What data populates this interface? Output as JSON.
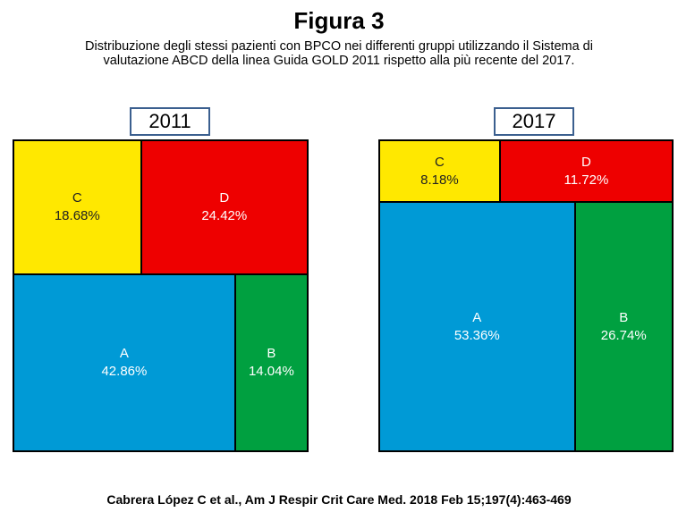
{
  "header": {
    "title": "Figura 3",
    "subtitle_line1": "Distribuzione degli stessi pazienti con BPCO nei differenti gruppi utilizzando il Sistema di",
    "subtitle_line2": "valutazione ABCD della linea Guida GOLD 2011 rispetto alla più recente del 2017."
  },
  "chart_data": [
    {
      "type": "treemap",
      "title": "2011",
      "cells": [
        {
          "group": "C",
          "value": 18.68,
          "label": "18.68%",
          "color": "#ffe800",
          "text_color": "#222222"
        },
        {
          "group": "D",
          "value": 24.42,
          "label": "24.42%",
          "color": "#ee0000",
          "text_color": "#ffffff"
        },
        {
          "group": "A",
          "value": 42.86,
          "label": "42.86%",
          "color": "#009ad6",
          "text_color": "#ffffff"
        },
        {
          "group": "B",
          "value": 14.04,
          "label": "14.04%",
          "color": "#00a040",
          "text_color": "#ffffff"
        }
      ]
    },
    {
      "type": "treemap",
      "title": "2017",
      "cells": [
        {
          "group": "C",
          "value": 8.18,
          "label": "8.18%",
          "color": "#ffe800",
          "text_color": "#222222"
        },
        {
          "group": "D",
          "value": 11.72,
          "label": "11.72%",
          "color": "#ee0000",
          "text_color": "#ffffff"
        },
        {
          "group": "A",
          "value": 53.36,
          "label": "53.36%",
          "color": "#009ad6",
          "text_color": "#ffffff"
        },
        {
          "group": "B",
          "value": 26.74,
          "label": "26.74%",
          "color": "#00a040",
          "text_color": "#ffffff"
        }
      ]
    }
  ],
  "citation": "Cabrera López C et al., Am J Respir Crit Care Med. 2018 Feb 15;197(4):463-469"
}
